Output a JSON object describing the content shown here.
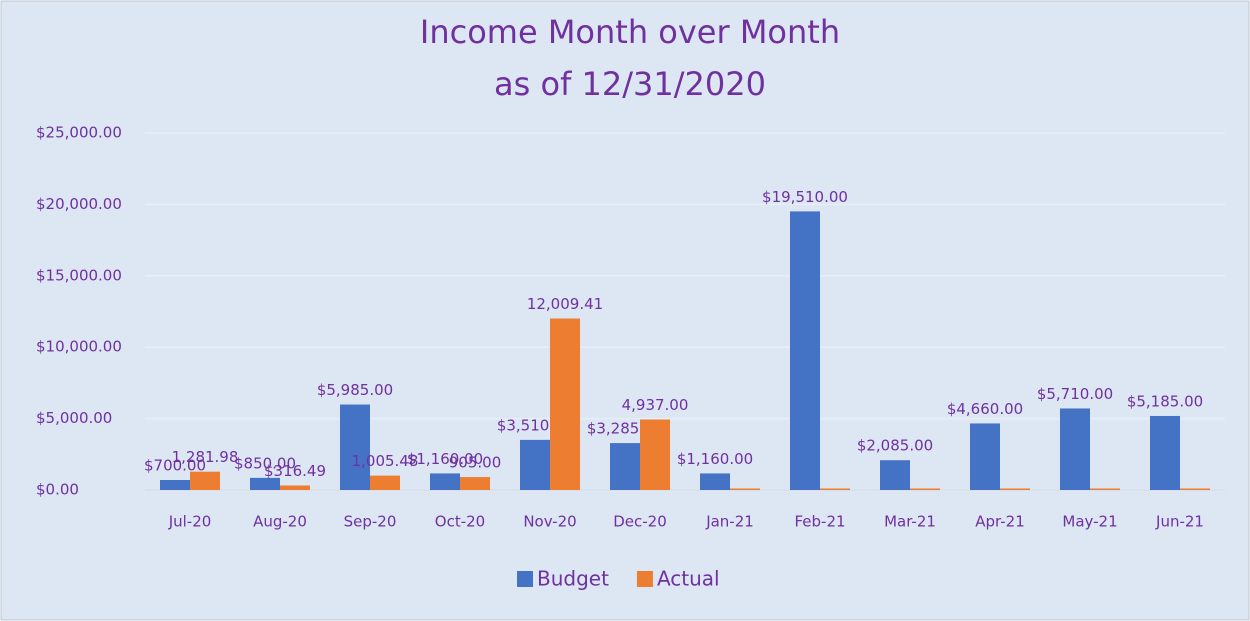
{
  "chart_data": {
    "type": "bar",
    "title": "Income Month over Month",
    "subtitle": "as of 12/31/2020",
    "categories": [
      "Jul-20",
      "Aug-20",
      "Sep-20",
      "Oct-20",
      "Nov-20",
      "Dec-20",
      "Jan-21",
      "Feb-21",
      "Mar-21",
      "Apr-21",
      "May-21",
      "Jun-21"
    ],
    "series": [
      {
        "name": "Budget",
        "color": "#4472c4",
        "values": [
          700,
          850,
          5985,
          1160,
          3510,
          3285,
          1160,
          19510,
          2085,
          4660,
          5710,
          5185
        ],
        "value_labels": [
          "$700.00",
          "$850.00",
          "$5,985.00",
          "$1,160.00",
          "$3,510.00",
          "$3,285.00",
          "$1,160.00",
          "$19,510.00",
          "$2,085.00",
          "$4,660.00",
          "$5,710.00",
          "$5,185.00"
        ]
      },
      {
        "name": "Actual",
        "color": "#ed7d31",
        "values": [
          1281.98,
          316.49,
          1005.48,
          905,
          12009.41,
          4937,
          0,
          0,
          0,
          0,
          0,
          0
        ],
        "value_labels": [
          "1,281.98",
          "$316.49",
          "1,005.48",
          "905.00",
          "12,009.41",
          "4,937.00",
          null,
          null,
          null,
          null,
          null,
          null
        ]
      }
    ],
    "ylim": [
      0,
      25000
    ],
    "yticks": [
      {
        "value": 0,
        "label": "$0.00"
      },
      {
        "value": 5000,
        "label": "$5,000.00"
      },
      {
        "value": 10000,
        "label": "$10,000.00"
      },
      {
        "value": 15000,
        "label": "$15,000.00"
      },
      {
        "value": 20000,
        "label": "$20,000.00"
      },
      {
        "value": 25000,
        "label": "$25,000.00"
      }
    ],
    "grid": true,
    "legend": "bottom"
  }
}
